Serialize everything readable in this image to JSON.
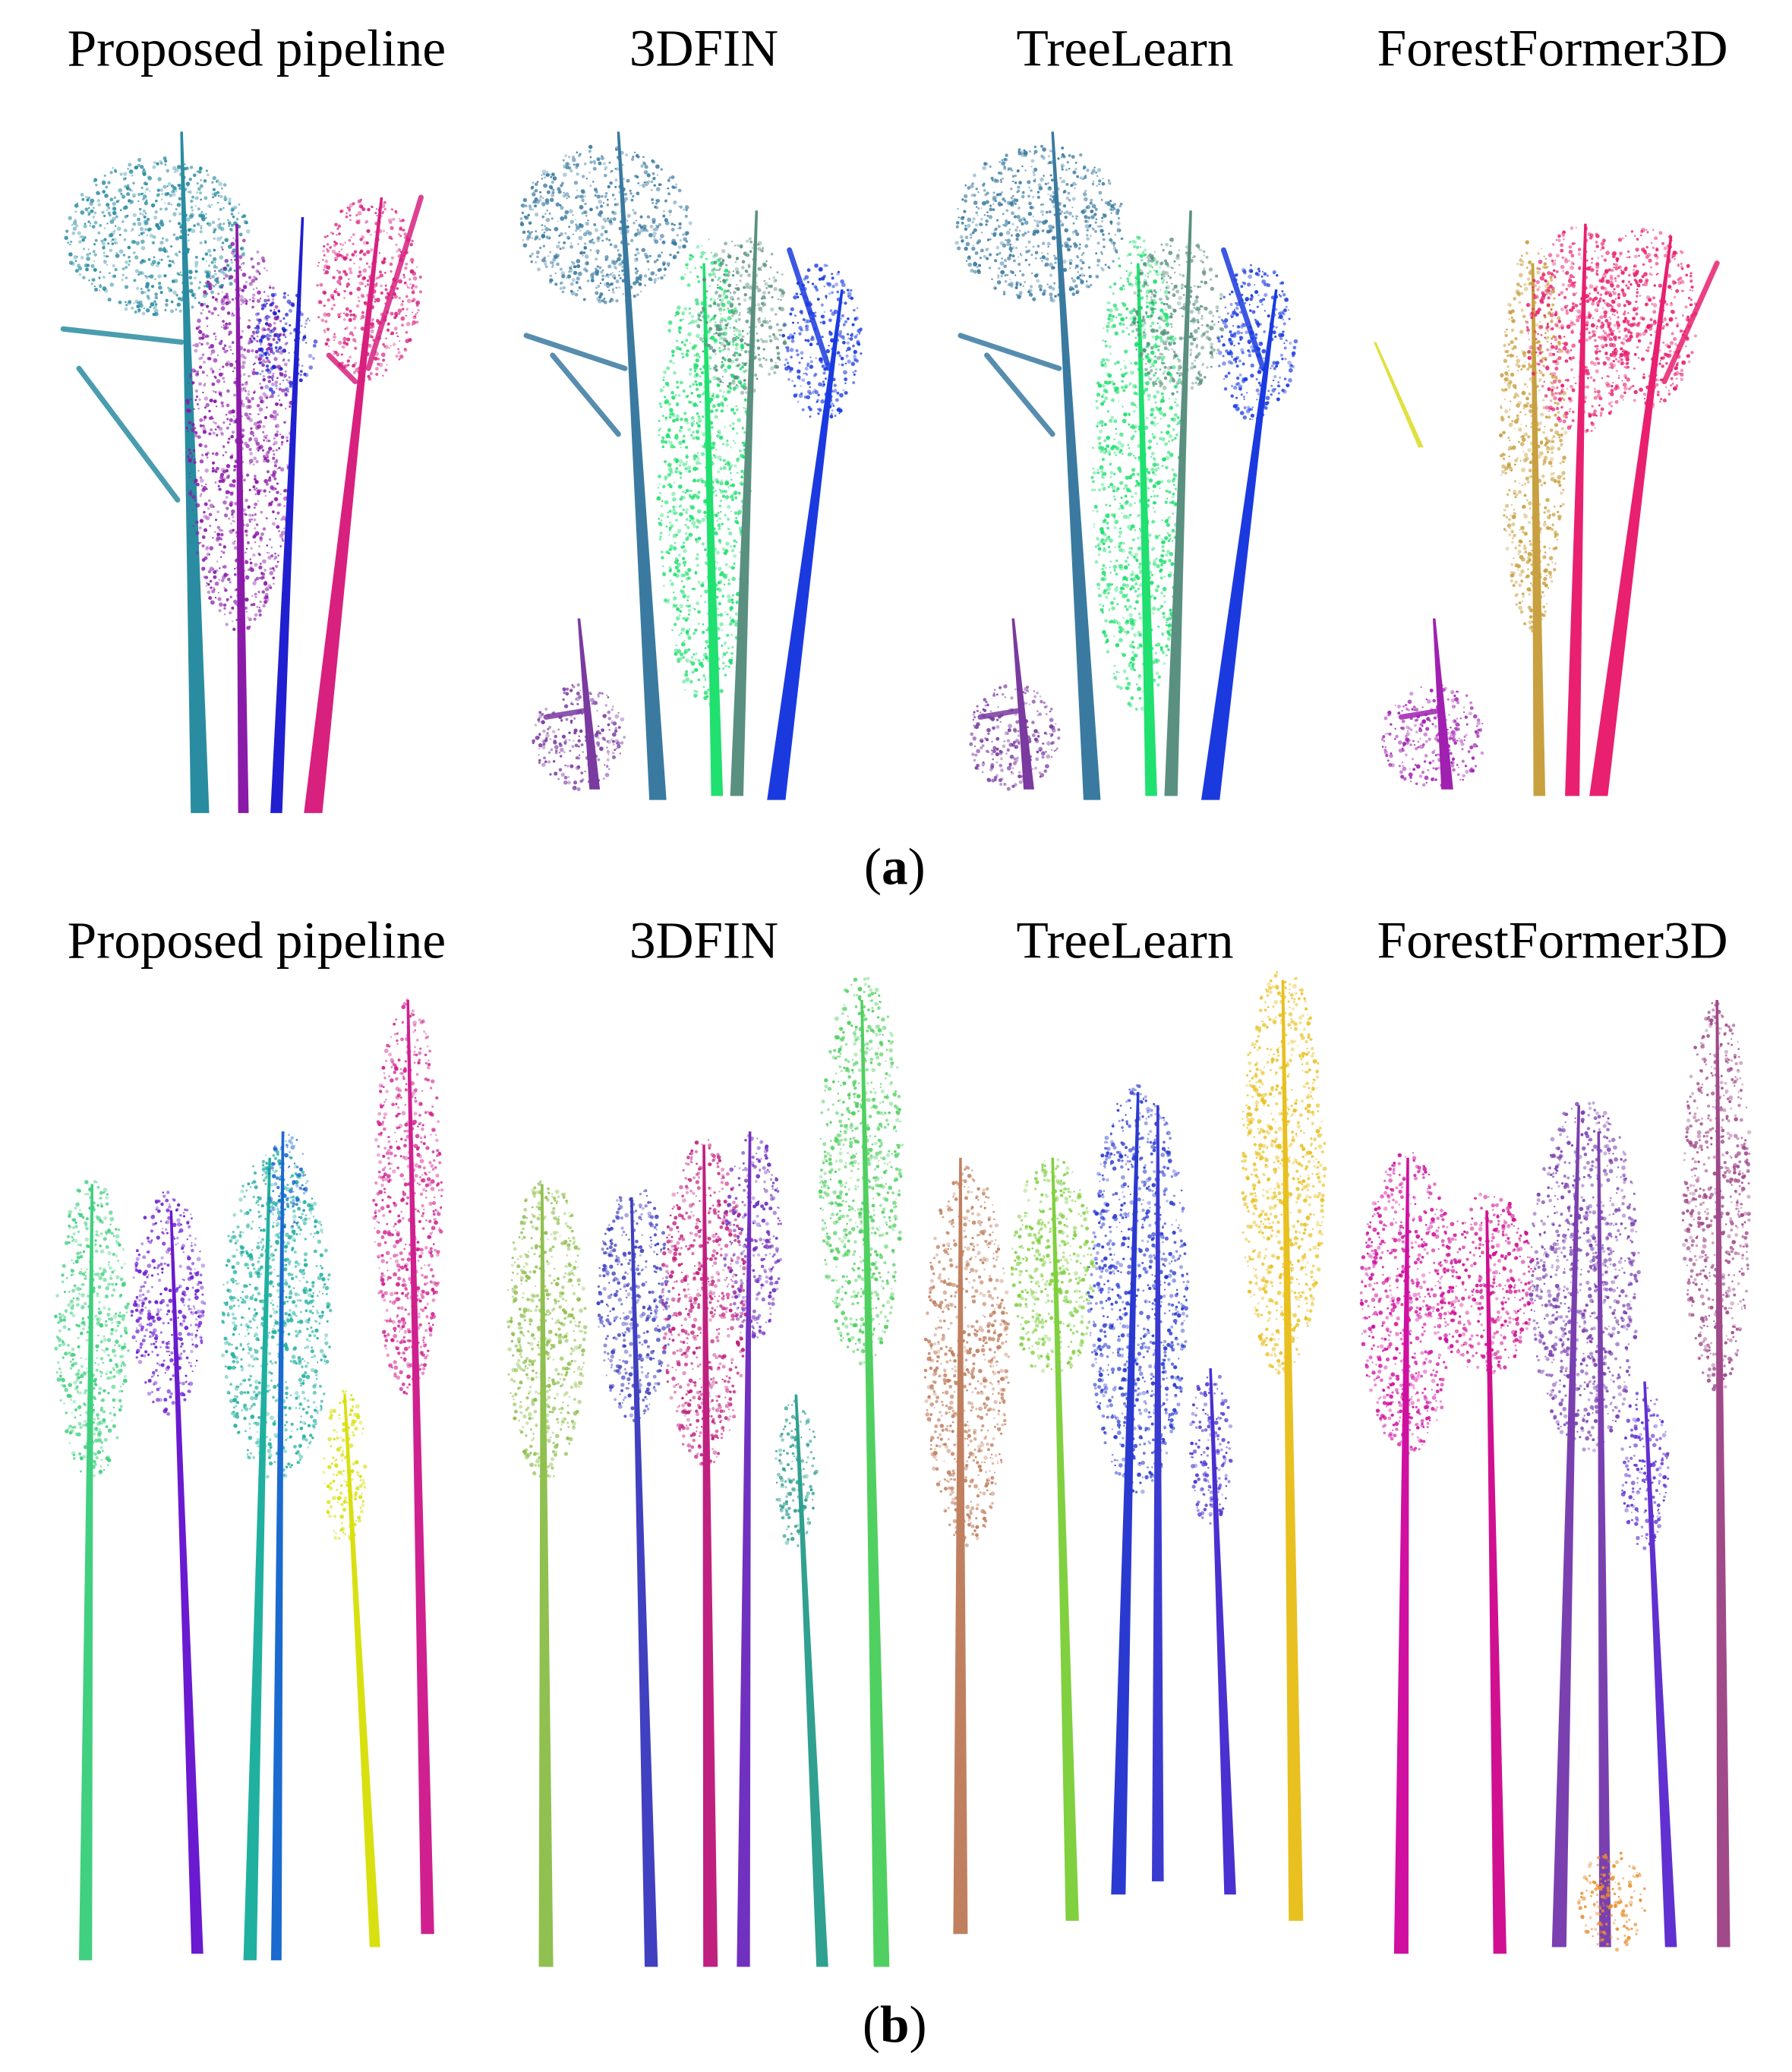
{
  "panels": [
    {
      "titles": [
        "Proposed pipeline",
        "3DFIN",
        "TreeLearn",
        "ForestFormer3D"
      ],
      "caption": [
        "(",
        "a",
        ")"
      ]
    },
    {
      "titles": [
        "Proposed pipeline",
        "3DFIN",
        "TreeLearn",
        "ForestFormer3D"
      ],
      "caption": [
        "(",
        "b",
        ")"
      ]
    }
  ]
}
